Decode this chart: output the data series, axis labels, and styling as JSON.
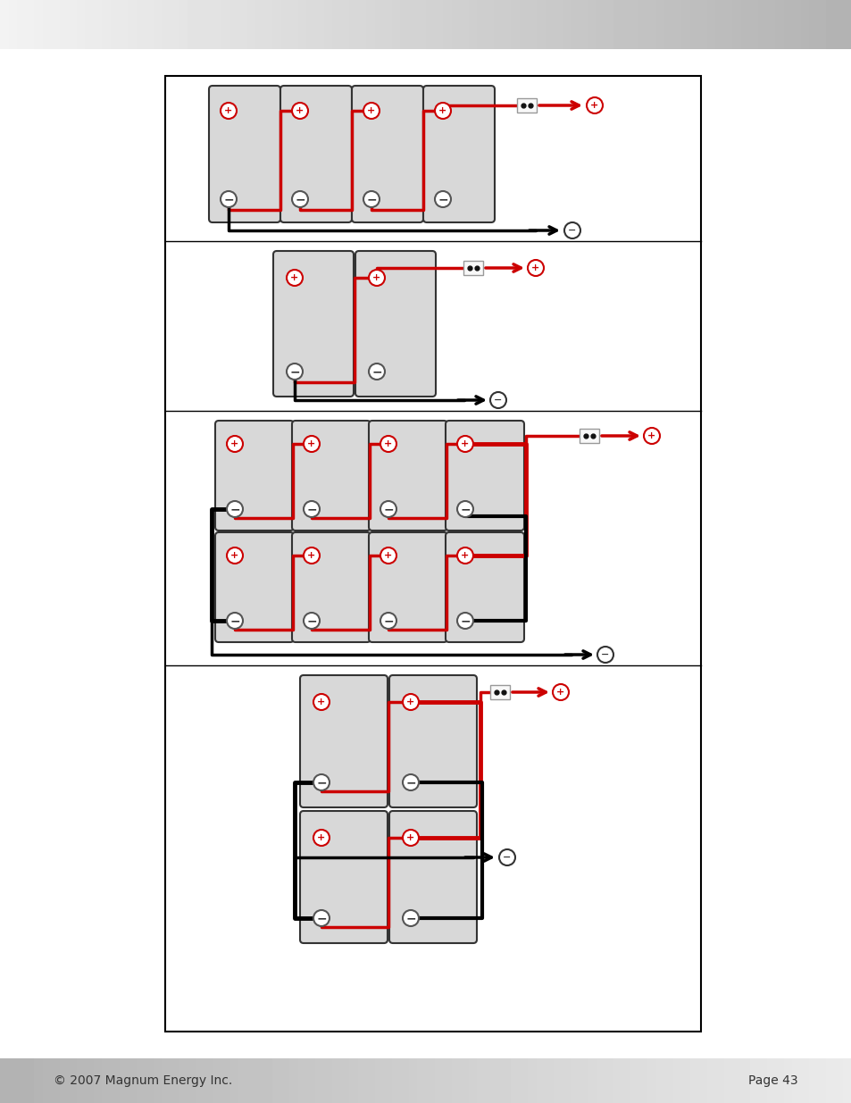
{
  "page_bg": "#ffffff",
  "header_gradient": [
    "#e8e8e8",
    "#b0b0b0"
  ],
  "footer_gradient": [
    "#c0c0c0",
    "#e8e8e8"
  ],
  "footer_text_left": "© 2007 Magnum Energy Inc.",
  "footer_text_right": "Page 43",
  "main_box_color": "#ffffff",
  "main_box_border": "#000000",
  "battery_fill": "#d8d8d8",
  "battery_border": "#333333",
  "red_wire": "#cc0000",
  "black_wire": "#000000",
  "plus_circle_fill": "#ffffff",
  "plus_circle_border": "#cc0000",
  "minus_circle_fill": "#ffffff",
  "minus_circle_border": "#333333",
  "connector_box_fill": "#ffffff",
  "connector_box_border": "#888888"
}
